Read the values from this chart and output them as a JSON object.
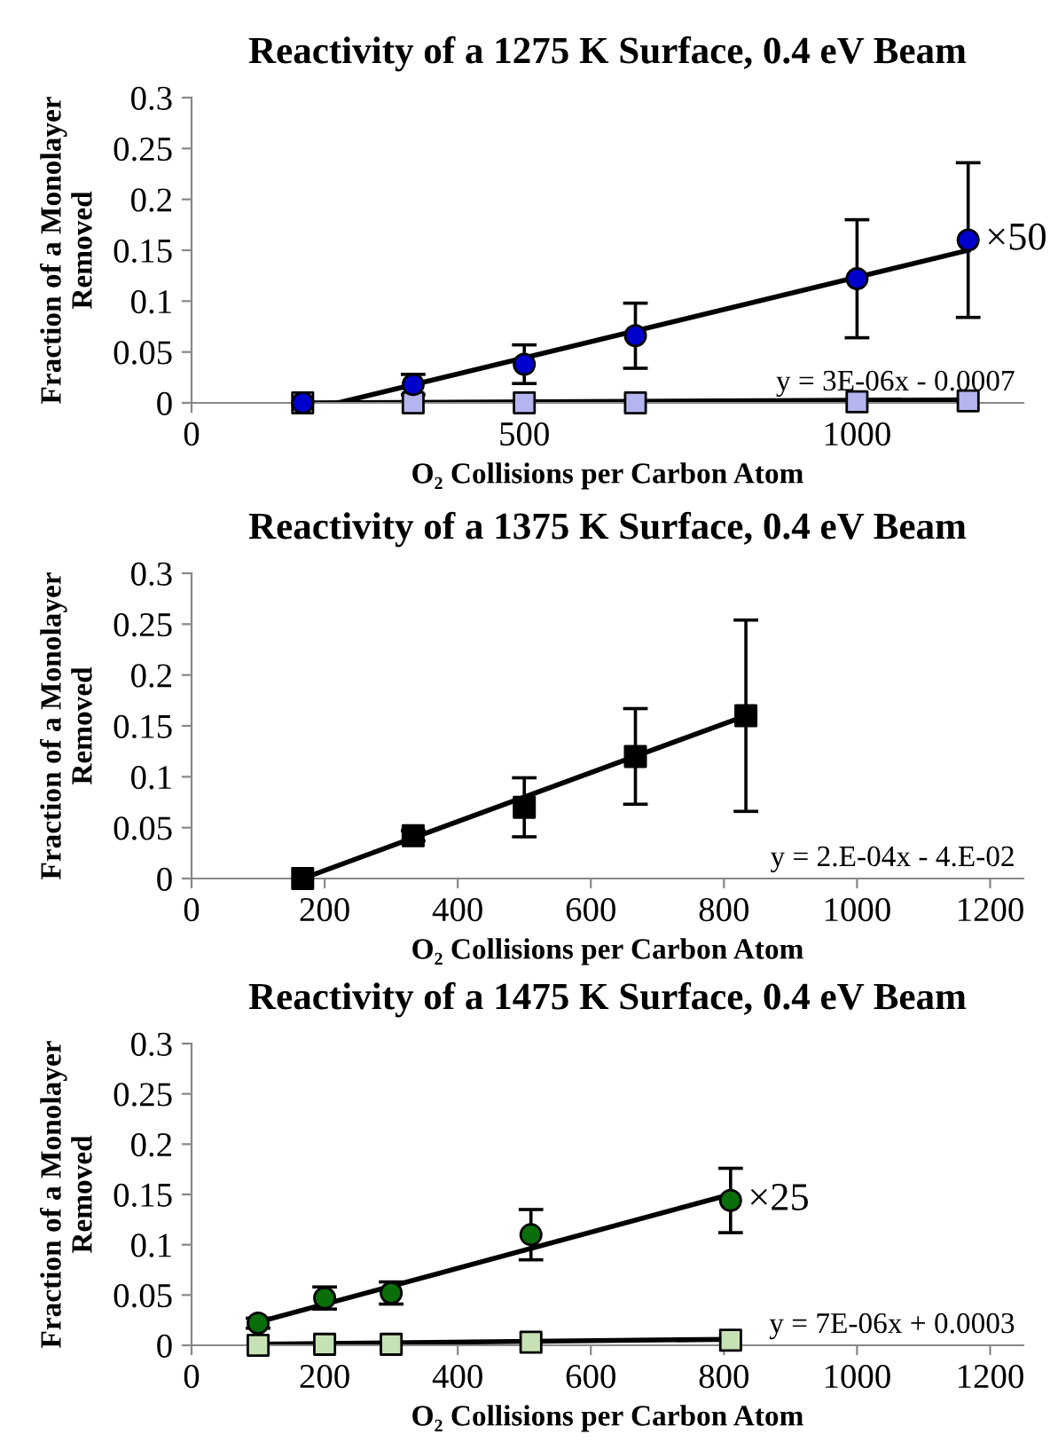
{
  "chart_data": [
    {
      "type": "scatter",
      "title": "Reactivity of a 1275 K Surface, 0.4 eV Beam",
      "xlabel": "O₂ Collisions per Carbon Atom",
      "ylabel": "Fraction of a Monolayer\nRemoved",
      "xlim": [
        0,
        1250
      ],
      "xticks": [
        0,
        500,
        1000
      ],
      "ylim": [
        0,
        0.3
      ],
      "yticks": [
        0,
        0.05,
        0.1,
        0.15,
        0.2,
        0.25,
        0.3
      ],
      "series": [
        {
          "type": "line",
          "color": "#000000",
          "marker": "none",
          "x": [
            220,
            1167
          ],
          "values": [
            0,
            0.15
          ]
        },
        {
          "type": "line",
          "color": "#000000",
          "marker": "none",
          "x": [
            167,
            1167
          ],
          "values": [
            0,
            0.003
          ]
        },
        {
          "type": "scatter",
          "color": "#0000cc",
          "marker": "circle",
          "x": [
            167,
            333,
            500,
            667,
            1000,
            1167
          ],
          "values": [
            0,
            0.018,
            0.038,
            0.066,
            0.122,
            0.16
          ],
          "errors": [
            null,
            0.01,
            0.019,
            0.032,
            0.058,
            0.076
          ]
        },
        {
          "type": "scatter",
          "color": "#b4b4ee",
          "marker": "square",
          "x": [
            167,
            333,
            500,
            667,
            1000,
            1167
          ],
          "values": [
            0,
            0,
            0,
            0,
            0.001,
            0.002
          ]
        }
      ],
      "annotations": [
        {
          "text": "×50",
          "x": 1167,
          "y": 0.16
        },
        "y = 3E-06x - 0.0007"
      ]
    },
    {
      "type": "scatter",
      "title": "Reactivity of a 1375 K Surface, 0.4 eV Beam",
      "xlabel": "O₂ Collisions per Carbon Atom",
      "ylabel": "Fraction of a Monolayer\nRemoved",
      "xlim": [
        0,
        1250
      ],
      "xticks": [
        0,
        200,
        400,
        600,
        800,
        1000,
        1200
      ],
      "ylim": [
        0,
        0.3
      ],
      "yticks": [
        0,
        0.05,
        0.1,
        0.15,
        0.2,
        0.25,
        0.3
      ],
      "series": [
        {
          "type": "line",
          "color": "#000000",
          "marker": "none",
          "x": [
            167,
            833
          ],
          "values": [
            0,
            0.16
          ]
        },
        {
          "type": "scatter",
          "color": "#000000",
          "marker": "square",
          "x": [
            167,
            333,
            500,
            667,
            833
          ],
          "values": [
            0,
            0.042,
            0.07,
            0.12,
            0.16
          ],
          "errors": [
            null,
            0.005,
            0.029,
            0.047,
            0.094
          ]
        }
      ],
      "annotations": [
        "y = 2.E-04x - 4.E-02"
      ]
    },
    {
      "type": "scatter",
      "title": "Reactivity of a 1475 K Surface, 0.4 eV Beam",
      "xlabel": "O₂ Collisions per Carbon Atom",
      "ylabel": "Fraction of a Monolayer\nRemoved",
      "xlim": [
        0,
        1250
      ],
      "xticks": [
        0,
        200,
        400,
        600,
        800,
        1000,
        1200
      ],
      "ylim": [
        0,
        0.3
      ],
      "yticks": [
        0,
        0.05,
        0.1,
        0.15,
        0.2,
        0.25,
        0.3
      ],
      "series": [
        {
          "type": "line",
          "color": "#000000",
          "marker": "none",
          "x": [
            100,
            810
          ],
          "values": [
            0.023,
            0.15
          ]
        },
        {
          "type": "line",
          "color": "#000000",
          "marker": "none",
          "x": [
            100,
            810
          ],
          "values": [
            0.001,
            0.006
          ]
        },
        {
          "type": "scatter",
          "color": "#0a6e0a",
          "marker": "circle",
          "x": [
            100,
            200,
            300,
            510,
            810
          ],
          "values": [
            0.022,
            0.047,
            0.052,
            0.11,
            0.144
          ],
          "errors": [
            0.005,
            0.011,
            0.011,
            0.025,
            0.032
          ]
        },
        {
          "type": "scatter",
          "color": "#c6e2b4",
          "marker": "square",
          "x": [
            100,
            200,
            300,
            510,
            810
          ],
          "values": [
            0,
            0.001,
            0.001,
            0.003,
            0.005
          ]
        }
      ],
      "annotations": [
        {
          "text": "×25",
          "x": 810,
          "y": 0.144
        },
        "y = 7E-06x + 0.0003"
      ]
    }
  ]
}
